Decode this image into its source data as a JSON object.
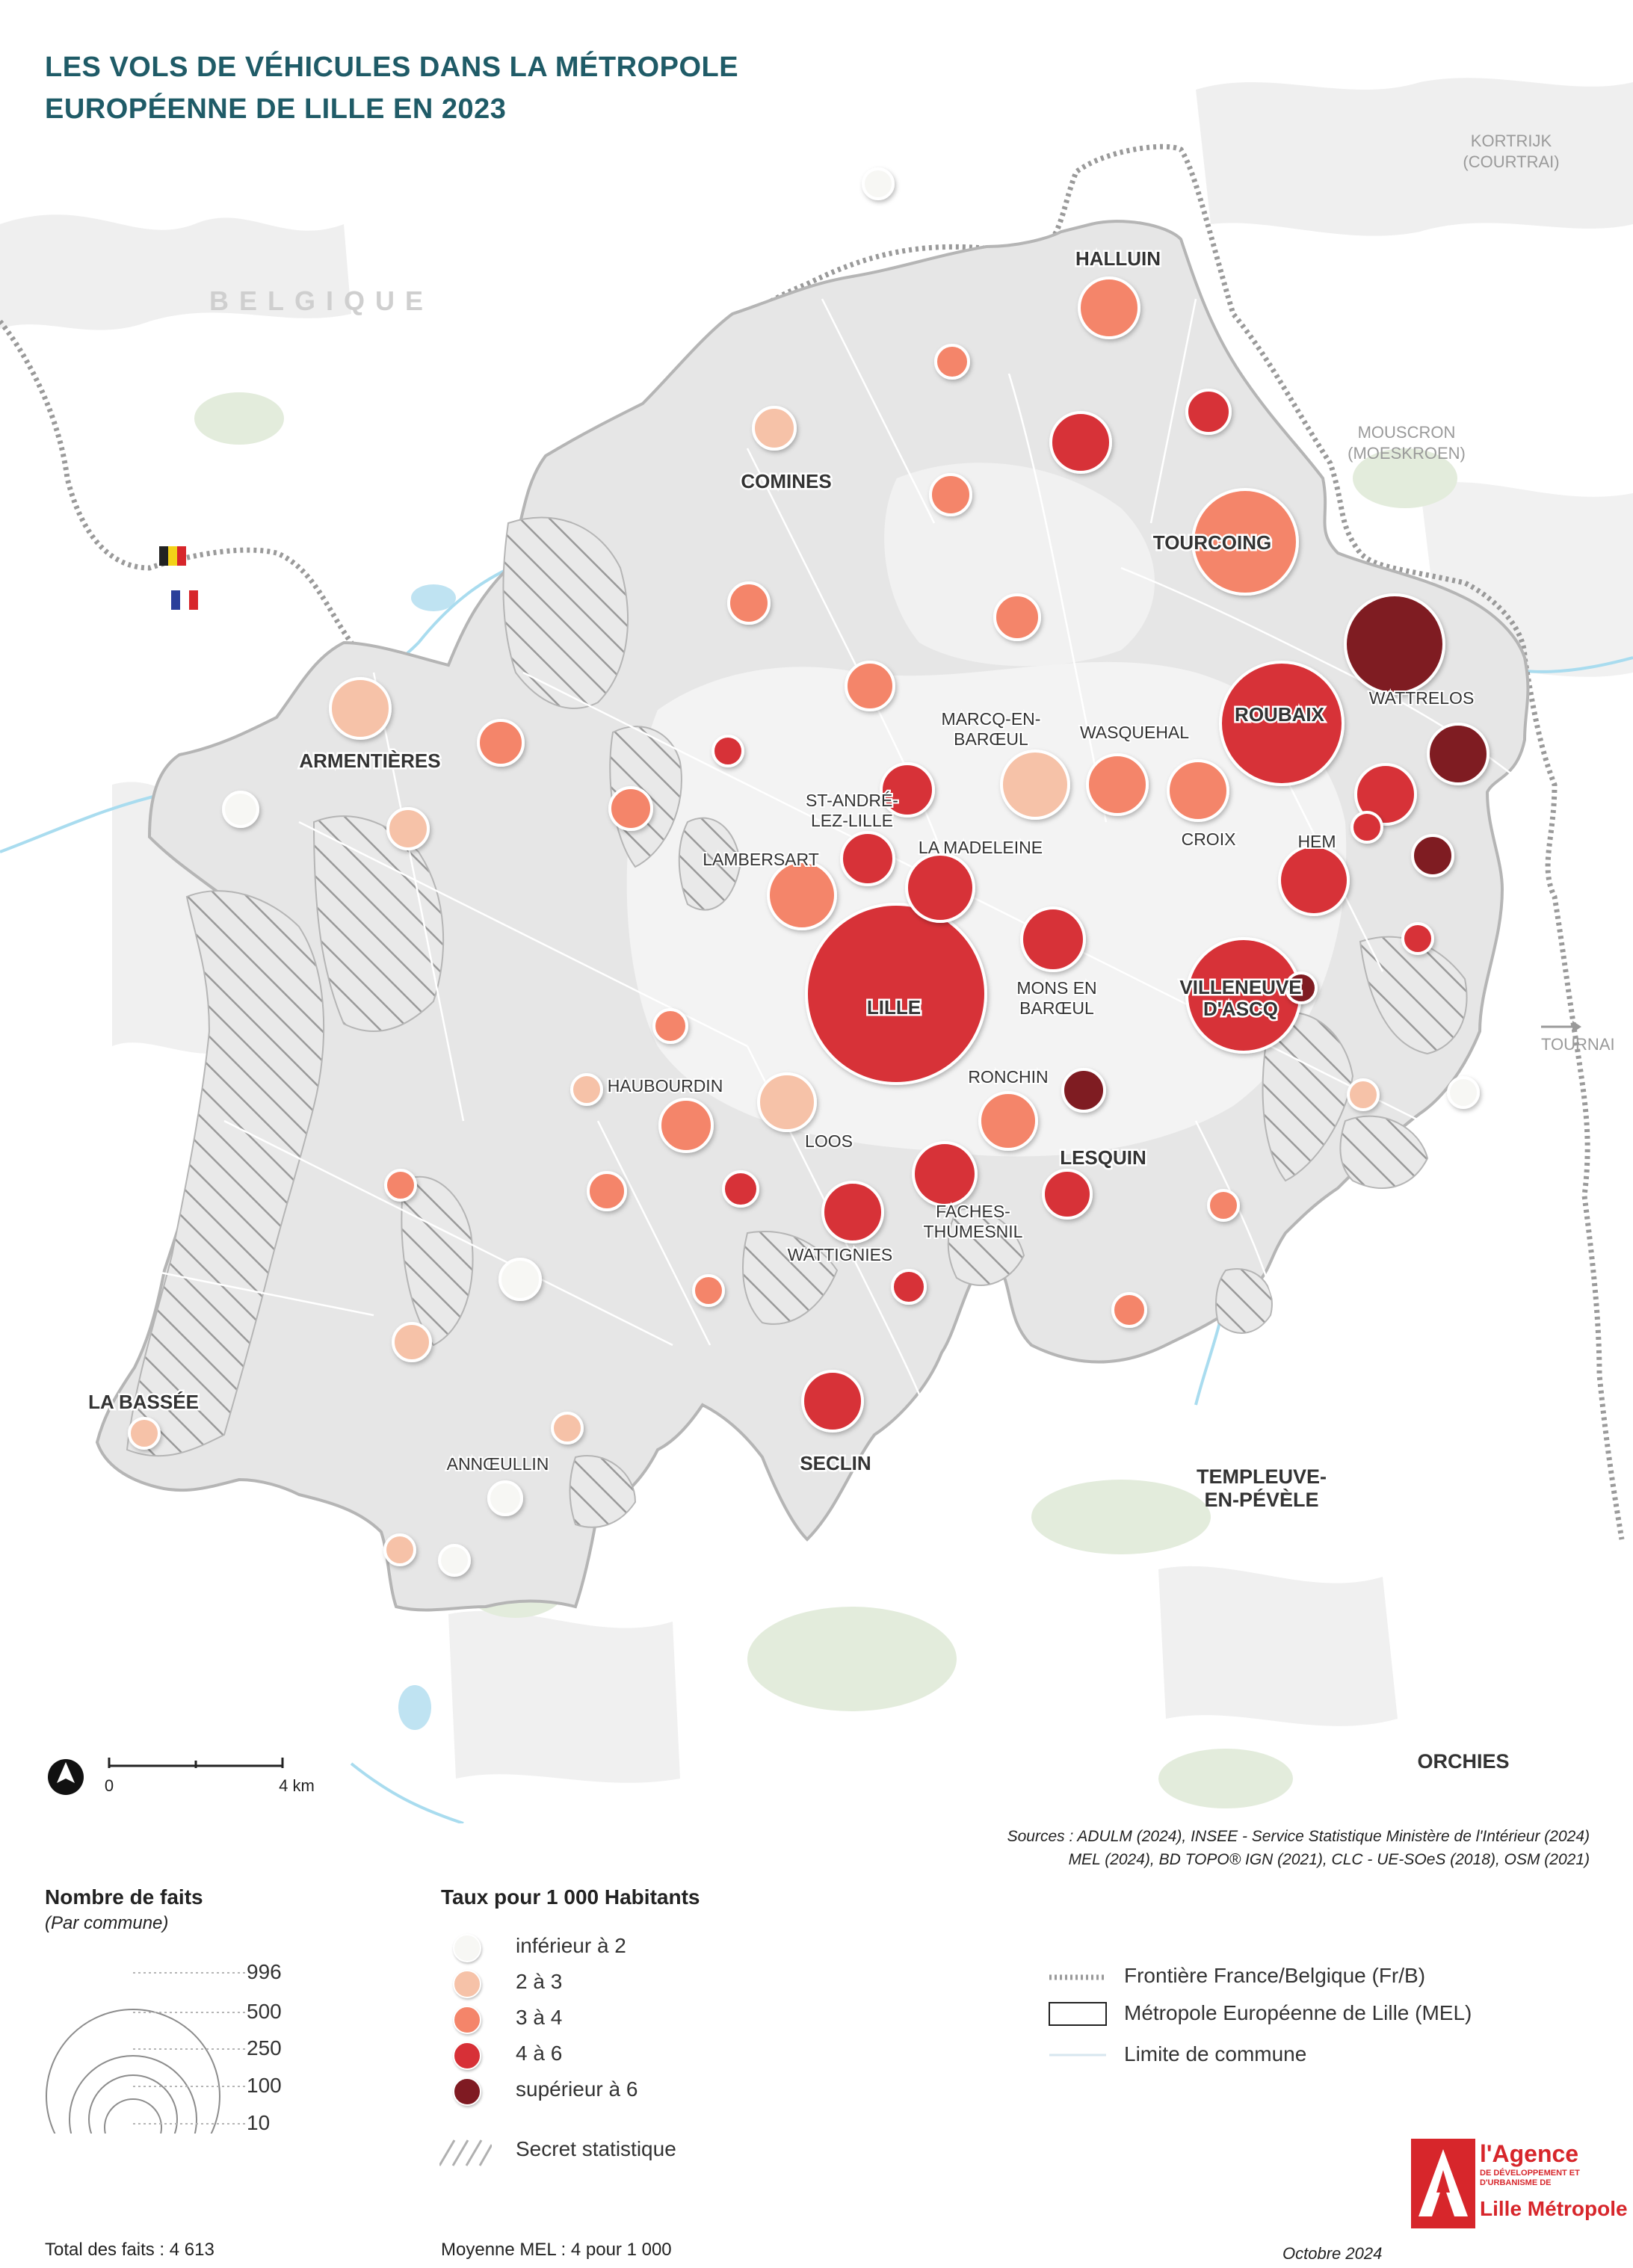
{
  "title_lines": [
    "LES VOLS DE VÉHICULES DANS LA MÉTROPOLE",
    "EUROPÉENNE DE LILLE EN 2023"
  ],
  "country_label": "BELGIQUE",
  "outside_places": {
    "kortrijk": [
      "KORTRIJK",
      "(COURTRAI)"
    ],
    "mouscron": [
      "MOUSCRON",
      "(MOESKROEN)"
    ],
    "tournai": "TOURNAI"
  },
  "major_towns": {
    "templeuve": [
      "TEMPLEUVE-",
      "EN-PÉVÈLE"
    ],
    "orchies": "ORCHIES",
    "halluin": "HALLUIN",
    "comines": "COMINES",
    "tourcoing": "TOURCOING",
    "wattrelos": "WATTRELOS",
    "roubaix": "ROUBAIX",
    "armentieres": "ARMENTIÈRES",
    "lille": "LILLE",
    "villeneuve": [
      "VILLENEUVE",
      "D'ASCQ"
    ],
    "lesquin": "LESQUIN",
    "seclin": "SECLIN",
    "la_bassee": "LA BASSÉE"
  },
  "minor_towns": {
    "marcq": [
      "MARCQ-EN-",
      "BARŒUL"
    ],
    "wasquehal": "WASQUEHAL",
    "st_andre": [
      "ST-ANDRÉ-",
      "LEZ-LILLE"
    ],
    "la_madeleine": "LA MADELEINE",
    "lambersart": "LAMBERSART",
    "croix": "CROIX",
    "hem": "HEM",
    "mons": [
      "MONS EN",
      "BARŒUL"
    ],
    "haubourdin": "HAUBOURDIN",
    "loos": "LOOS",
    "ronchin": "RONCHIN",
    "faches": [
      "FACHES-",
      "THUMESNIL"
    ],
    "wattignies": "WATTIGNIES",
    "annoeullin": "ANNŒULLIN"
  },
  "scale": {
    "zero": "0",
    "end": "4 km"
  },
  "sources": [
    "Sources :  ADULM (2024), INSEE - Service Statistique Ministère de l'Intérieur (2024)",
    "MEL (2024), BD TOPO® IGN (2021), CLC - UE-SOeS (2018), OSM (2021)"
  ],
  "legend": {
    "size_title": "Nombre de faits",
    "size_sub": "(Par commune)",
    "size_values": [
      "996",
      "500",
      "250",
      "100",
      "10"
    ],
    "rate_title": "Taux pour 1 000 Habitants",
    "classes": [
      {
        "label": "inférieur à 2",
        "color": "#f7f7f4"
      },
      {
        "label": "2 à 3",
        "color": "#f6c2a8"
      },
      {
        "label": "3 à 4",
        "color": "#f4856a"
      },
      {
        "label": "4 à 6",
        "color": "#d73037"
      },
      {
        "label": "supérieur à 6",
        "color": "#7f1a22"
      }
    ],
    "secret": "Secret statistique",
    "border": "Frontière France/Belgique (Fr/B)",
    "mel": "Métropole Européenne de Lille (MEL)",
    "commune": "Limite de commune",
    "total": "Total des faits : 4 613",
    "mean": "Moyenne MEL : 4 pour 1 000"
  },
  "logo": {
    "line1": "l'Agence",
    "line2": "DE DÉVELOPPEMENT ET D'URBANISME DE",
    "line3": "Lille Métropole"
  },
  "date": "Octobre 2024",
  "colors": {
    "title": "#1f5b67",
    "very_low": "#f7f7f4",
    "low": "#f6c2a8",
    "mid": "#f4856a",
    "high": "#d73037",
    "very_high": "#7f1a22"
  }
}
